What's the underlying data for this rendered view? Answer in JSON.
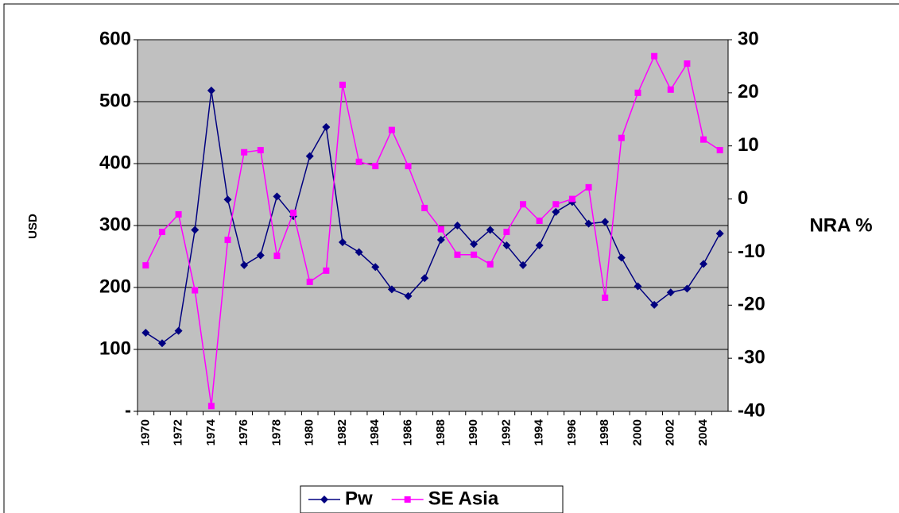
{
  "chart_data": {
    "type": "line",
    "y_label": "USD",
    "y2_label": "NRA %",
    "categories": [
      "1970",
      null,
      "1972",
      null,
      "1974",
      null,
      "1976",
      null,
      "1978",
      null,
      "1980",
      null,
      "1982",
      null,
      "1984",
      null,
      "1986",
      null,
      "1988",
      null,
      "1990",
      null,
      "1992",
      null,
      "1994",
      null,
      "1996",
      null,
      "1998",
      null,
      "2000",
      null,
      "2002",
      null,
      "2004",
      null
    ],
    "series": [
      {
        "name": "Pw",
        "color": "#000080",
        "marker": "diamond",
        "axis": "y",
        "values": [
          127,
          110,
          130,
          293,
          518,
          342,
          236,
          252,
          347,
          315,
          412,
          459,
          273,
          257,
          233,
          197,
          186,
          215,
          277,
          300,
          270,
          293,
          268,
          236,
          268,
          322,
          338,
          303,
          306,
          248,
          202,
          172,
          192,
          198,
          238,
          287
        ]
      },
      {
        "name": "SE Asia",
        "color": "#ff00ff",
        "marker": "square",
        "axis": "y2",
        "values": [
          -12.5,
          -6.2,
          -2.9,
          -17.2,
          -39,
          -7.7,
          8.8,
          9.2,
          -10.7,
          -2.6,
          -15.6,
          -13.5,
          21.5,
          7,
          6.2,
          13,
          6.2,
          -1.7,
          -5.7,
          -10.5,
          -10.5,
          -12.3,
          -6.2,
          -1,
          -4.1,
          -1,
          0,
          2.2,
          -18.6,
          11.5,
          20,
          26.9,
          20.6,
          25.5,
          11.2,
          9.2
        ]
      }
    ],
    "ylim": [
      0,
      600
    ],
    "yticks": [
      {
        "value": 0,
        "label": "-"
      },
      100,
      200,
      300,
      400,
      500,
      600
    ],
    "y2lim": [
      -40,
      30
    ],
    "y2ticks": [
      -40,
      -30,
      -20,
      -10,
      0,
      10,
      20,
      30
    ],
    "grid": true,
    "plot_background": "#c0c0c0",
    "legend": "bottom"
  }
}
